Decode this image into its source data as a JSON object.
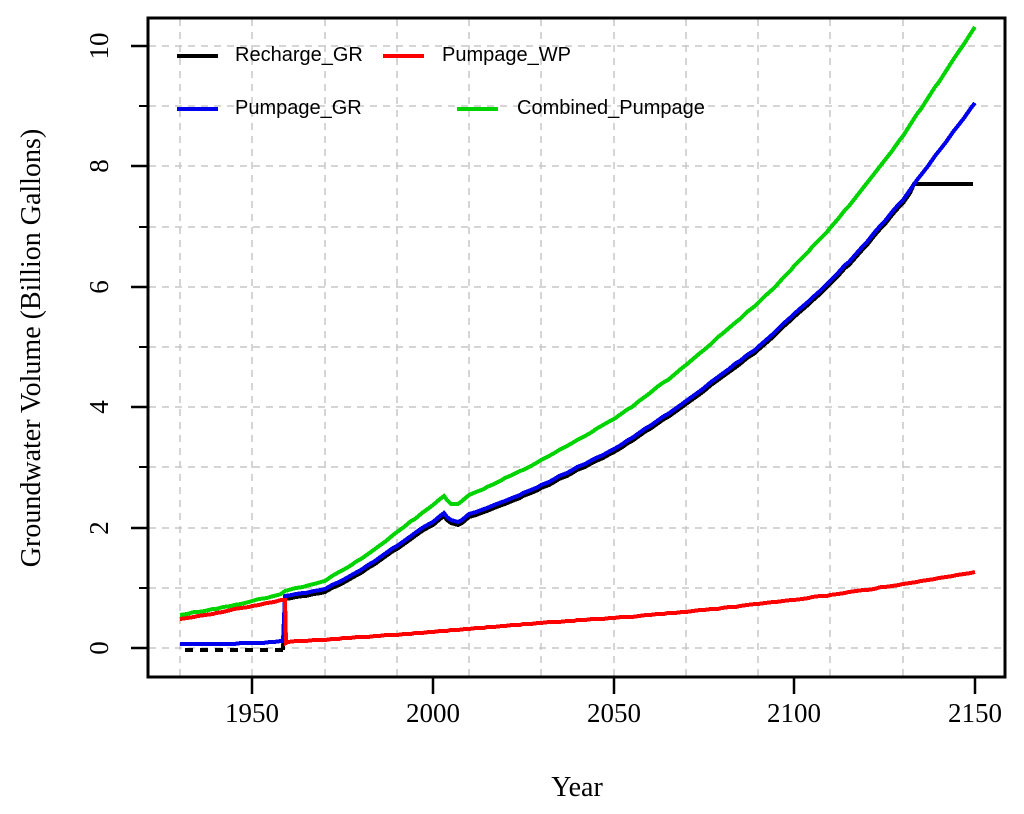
{
  "chart_data": {
    "type": "line",
    "title": "",
    "xlabel": "Year",
    "ylabel": "Groundwater Volume (Billion Gallons)",
    "x_range": [
      1930,
      2150
    ],
    "y_range": [
      0,
      10.4
    ],
    "x_ticks": [
      "1950",
      "2000",
      "2050",
      "2100",
      "2150"
    ],
    "y_ticks_major": [
      "0",
      "2",
      "4",
      "6",
      "8",
      "10"
    ],
    "y_ticks_minor": [
      1,
      3,
      5,
      7,
      9
    ],
    "grid": {
      "style": "dashed",
      "color": "#c7c7c7",
      "x_years": [
        1930,
        1950,
        1970,
        1990,
        2010,
        2030,
        2050,
        2070,
        2090,
        2110,
        2130
      ],
      "y_values": [
        0,
        1,
        2,
        3,
        4,
        5,
        6,
        7,
        8,
        9,
        10
      ]
    },
    "legend": {
      "position": "top-left-inside",
      "rows": [
        [
          "Recharge_GR",
          "Pumpage_WP"
        ],
        [
          "Pumpage_GR",
          "Combined_Pumpage"
        ]
      ]
    },
    "series": [
      {
        "name": "Recharge_GR",
        "color": "#000000",
        "segments": [
          {
            "style": "dashed",
            "points": [
              [
                1931.5,
                -0.04
              ],
              [
                1958.6,
                -0.04
              ]
            ]
          },
          {
            "style": "solid",
            "points": [
              [
                1958.6,
                -0.04
              ],
              [
                1959,
                0.81
              ],
              [
                1962,
                0.84
              ],
              [
                1965,
                0.87
              ],
              [
                1970,
                0.93
              ],
              [
                1975,
                1.08
              ],
              [
                1980,
                1.25
              ],
              [
                1985,
                1.44
              ],
              [
                1990,
                1.65
              ],
              [
                1995,
                1.86
              ],
              [
                2000,
                2.05
              ],
              [
                2002,
                2.15
              ],
              [
                2003,
                2.19
              ],
              [
                2004,
                2.13
              ],
              [
                2005,
                2.07
              ],
              [
                2007,
                2.05
              ],
              [
                2008,
                2.08
              ],
              [
                2010,
                2.17
              ],
              [
                2015,
                2.28
              ],
              [
                2020,
                2.4
              ],
              [
                2025,
                2.52
              ],
              [
                2030,
                2.65
              ],
              [
                2035,
                2.8
              ],
              [
                2040,
                2.95
              ],
              [
                2045,
                3.1
              ],
              [
                2050,
                3.25
              ],
              [
                2055,
                3.44
              ],
              [
                2060,
                3.64
              ],
              [
                2065,
                3.84
              ],
              [
                2070,
                4.05
              ],
              [
                2075,
                4.27
              ],
              [
                2080,
                4.5
              ],
              [
                2085,
                4.72
              ],
              [
                2090,
                4.95
              ],
              [
                2095,
                5.21
              ],
              [
                2100,
                5.5
              ],
              [
                2105,
                5.77
              ],
              [
                2110,
                6.05
              ],
              [
                2115,
                6.37
              ],
              [
                2120,
                6.7
              ],
              [
                2125,
                7.05
              ],
              [
                2130,
                7.4
              ],
              [
                2132,
                7.55
              ],
              [
                2133,
                7.7
              ],
              [
                2149.5,
                7.7
              ]
            ]
          }
        ]
      },
      {
        "name": "Pumpage_WP",
        "color": "#ff0000",
        "points": [
          [
            1930,
            0.48
          ],
          [
            1935,
            0.53
          ],
          [
            1940,
            0.58
          ],
          [
            1945,
            0.64
          ],
          [
            1950,
            0.7
          ],
          [
            1954,
            0.74
          ],
          [
            1956,
            0.76
          ],
          [
            1958,
            0.79
          ],
          [
            1959,
            0.79
          ],
          [
            1959.4,
            0.09
          ],
          [
            1960,
            0.1
          ],
          [
            1965,
            0.12
          ],
          [
            1970,
            0.14
          ],
          [
            1975,
            0.16
          ],
          [
            1980,
            0.18
          ],
          [
            1985,
            0.2
          ],
          [
            1990,
            0.22
          ],
          [
            1995,
            0.245
          ],
          [
            2000,
            0.27
          ],
          [
            2005,
            0.295
          ],
          [
            2010,
            0.32
          ],
          [
            2015,
            0.345
          ],
          [
            2020,
            0.37
          ],
          [
            2025,
            0.395
          ],
          [
            2030,
            0.42
          ],
          [
            2035,
            0.44
          ],
          [
            2040,
            0.46
          ],
          [
            2045,
            0.48
          ],
          [
            2050,
            0.5
          ],
          [
            2055,
            0.52
          ],
          [
            2060,
            0.55
          ],
          [
            2065,
            0.575
          ],
          [
            2070,
            0.6
          ],
          [
            2075,
            0.63
          ],
          [
            2080,
            0.66
          ],
          [
            2085,
            0.695
          ],
          [
            2090,
            0.73
          ],
          [
            2095,
            0.765
          ],
          [
            2100,
            0.8
          ],
          [
            2105,
            0.84
          ],
          [
            2110,
            0.88
          ],
          [
            2115,
            0.925
          ],
          [
            2120,
            0.97
          ],
          [
            2125,
            1.015
          ],
          [
            2130,
            1.06
          ],
          [
            2135,
            1.11
          ],
          [
            2140,
            1.16
          ],
          [
            2145,
            1.21
          ],
          [
            2150,
            1.26
          ]
        ]
      },
      {
        "name": "Pumpage_GR",
        "color": "#0000ee",
        "points": [
          [
            1930,
            0.06
          ],
          [
            1940,
            0.065
          ],
          [
            1945,
            0.07
          ],
          [
            1948,
            0.08
          ],
          [
            1950,
            0.085
          ],
          [
            1953,
            0.09
          ],
          [
            1956,
            0.1
          ],
          [
            1958,
            0.11
          ],
          [
            1958.6,
            0.11
          ],
          [
            1959,
            0.86
          ],
          [
            1962,
            0.89
          ],
          [
            1965,
            0.92
          ],
          [
            1970,
            0.98
          ],
          [
            1975,
            1.13
          ],
          [
            1980,
            1.3
          ],
          [
            1985,
            1.49
          ],
          [
            1990,
            1.7
          ],
          [
            1995,
            1.91
          ],
          [
            2000,
            2.1
          ],
          [
            2002,
            2.2
          ],
          [
            2003,
            2.24
          ],
          [
            2004,
            2.18
          ],
          [
            2005,
            2.12
          ],
          [
            2007,
            2.1
          ],
          [
            2008,
            2.13
          ],
          [
            2010,
            2.22
          ],
          [
            2015,
            2.33
          ],
          [
            2020,
            2.45
          ],
          [
            2025,
            2.57
          ],
          [
            2030,
            2.7
          ],
          [
            2035,
            2.85
          ],
          [
            2040,
            3.0
          ],
          [
            2045,
            3.15
          ],
          [
            2050,
            3.3
          ],
          [
            2055,
            3.49
          ],
          [
            2060,
            3.69
          ],
          [
            2065,
            3.89
          ],
          [
            2070,
            4.1
          ],
          [
            2075,
            4.32
          ],
          [
            2080,
            4.55
          ],
          [
            2085,
            4.77
          ],
          [
            2090,
            5.0
          ],
          [
            2095,
            5.26
          ],
          [
            2100,
            5.55
          ],
          [
            2105,
            5.82
          ],
          [
            2110,
            6.1
          ],
          [
            2115,
            6.42
          ],
          [
            2120,
            6.75
          ],
          [
            2125,
            7.1
          ],
          [
            2130,
            7.45
          ],
          [
            2135,
            7.85
          ],
          [
            2140,
            8.25
          ],
          [
            2145,
            8.65
          ],
          [
            2150,
            9.05
          ]
        ]
      },
      {
        "name": "Combined_Pumpage",
        "color": "#00d400",
        "points": [
          [
            1930,
            0.55
          ],
          [
            1935,
            0.6
          ],
          [
            1940,
            0.65
          ],
          [
            1945,
            0.71
          ],
          [
            1950,
            0.78
          ],
          [
            1955,
            0.85
          ],
          [
            1958,
            0.9
          ],
          [
            1959,
            0.95
          ],
          [
            1962,
            0.99
          ],
          [
            1965,
            1.03
          ],
          [
            1970,
            1.12
          ],
          [
            1975,
            1.29
          ],
          [
            1980,
            1.48
          ],
          [
            1985,
            1.69
          ],
          [
            1990,
            1.92
          ],
          [
            1995,
            2.15
          ],
          [
            2000,
            2.37
          ],
          [
            2002,
            2.48
          ],
          [
            2003,
            2.52
          ],
          [
            2004,
            2.46
          ],
          [
            2005,
            2.4
          ],
          [
            2007,
            2.4
          ],
          [
            2008,
            2.44
          ],
          [
            2010,
            2.54
          ],
          [
            2015,
            2.67
          ],
          [
            2020,
            2.82
          ],
          [
            2025,
            2.96
          ],
          [
            2030,
            3.12
          ],
          [
            2035,
            3.29
          ],
          [
            2040,
            3.46
          ],
          [
            2045,
            3.63
          ],
          [
            2050,
            3.8
          ],
          [
            2055,
            4.01
          ],
          [
            2060,
            4.24
          ],
          [
            2065,
            4.46
          ],
          [
            2070,
            4.7
          ],
          [
            2075,
            4.95
          ],
          [
            2080,
            5.21
          ],
          [
            2085,
            5.47
          ],
          [
            2090,
            5.73
          ],
          [
            2095,
            6.02
          ],
          [
            2100,
            6.35
          ],
          [
            2105,
            6.66
          ],
          [
            2110,
            6.98
          ],
          [
            2115,
            7.34
          ],
          [
            2120,
            7.72
          ],
          [
            2125,
            8.1
          ],
          [
            2130,
            8.51
          ],
          [
            2135,
            8.96
          ],
          [
            2140,
            9.41
          ],
          [
            2145,
            9.86
          ],
          [
            2150,
            10.31
          ]
        ]
      }
    ]
  }
}
